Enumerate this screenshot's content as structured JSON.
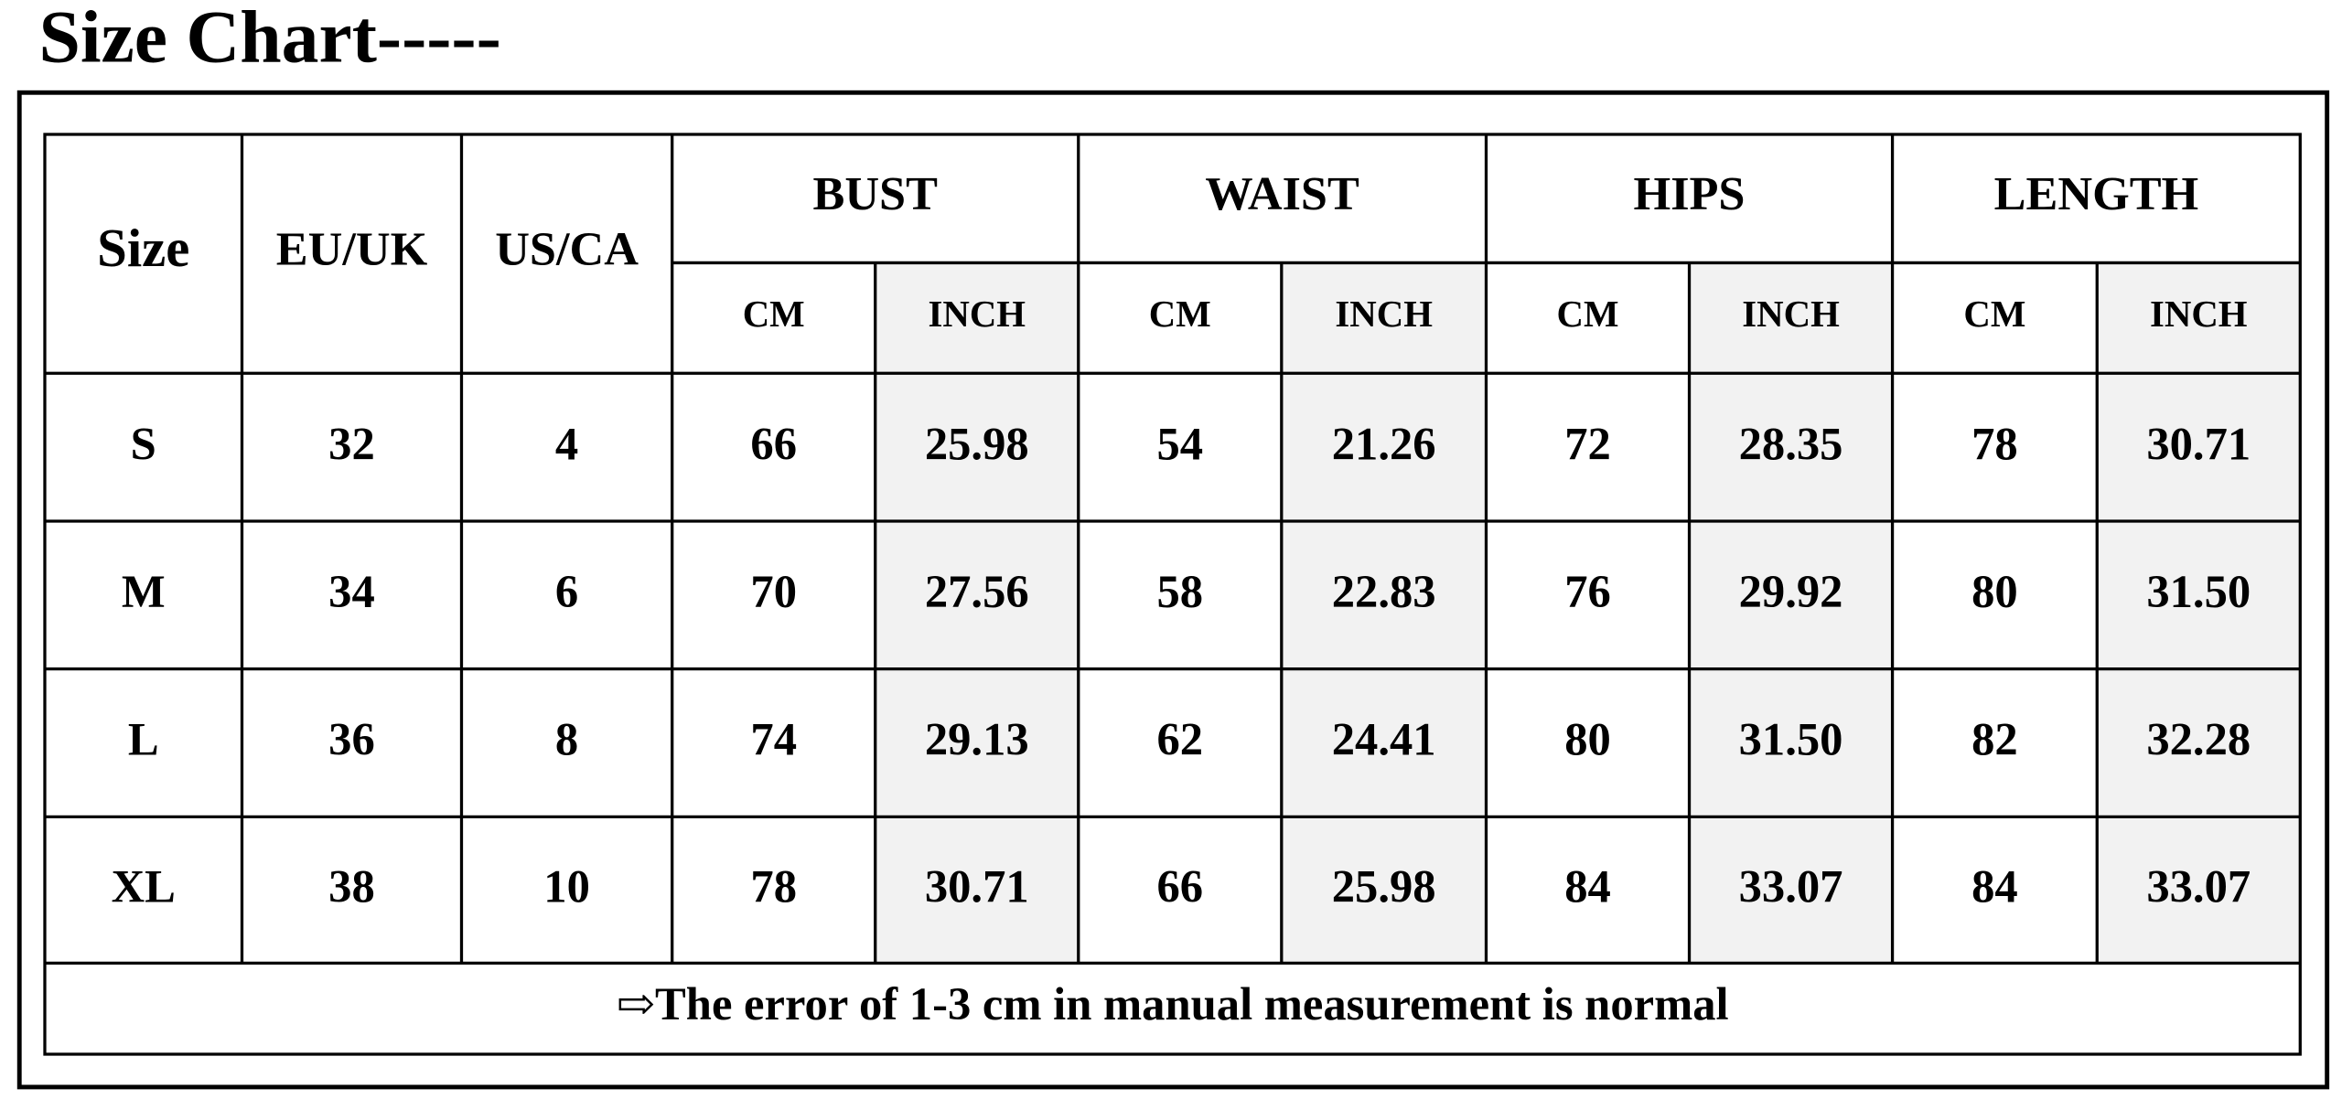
{
  "header": {
    "title": "Size Chart-----"
  },
  "table": {
    "headers": [
      "Size",
      "EU/UK",
      "US/CA"
    ],
    "groups": [
      "BUST",
      "WAIST",
      "HIPS",
      "LENGTH"
    ],
    "units": [
      "CM",
      "INCH",
      "CM",
      "INCH",
      "CM",
      "INCH",
      "CM",
      "INCH"
    ],
    "rows": [
      [
        "S",
        "32",
        "4",
        "66",
        "25.98",
        "54",
        "21.26",
        "72",
        "28.35",
        "78",
        "30.71"
      ],
      [
        "M",
        "34",
        "6",
        "70",
        "27.56",
        "58",
        "22.83",
        "76",
        "29.92",
        "80",
        "31.50"
      ],
      [
        "L",
        "36",
        "8",
        "74",
        "29.13",
        "62",
        "24.41",
        "80",
        "31.50",
        "82",
        "32.28"
      ],
      [
        "XL",
        "38",
        "10",
        "78",
        "30.71",
        "66",
        "25.98",
        "84",
        "33.07",
        "84",
        "33.07"
      ]
    ],
    "note": "⇨The error of 1-3 cm in manual measurement is normal"
  }
}
